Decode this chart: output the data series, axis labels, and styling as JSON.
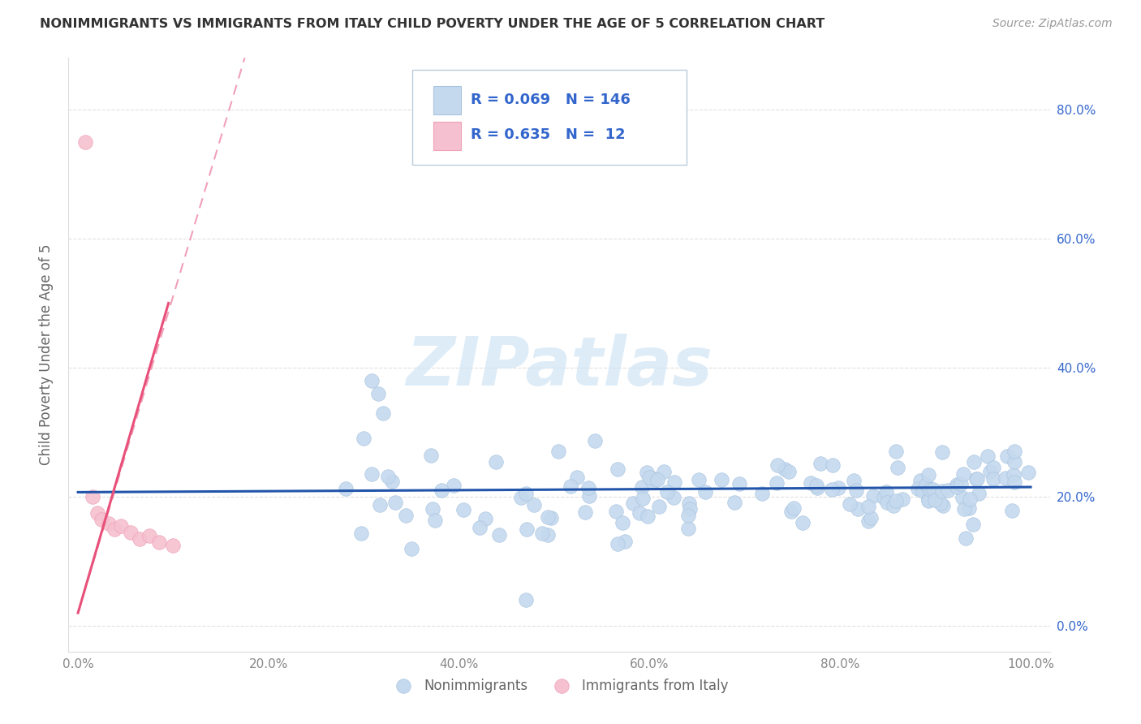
{
  "title": "NONIMMIGRANTS VS IMMIGRANTS FROM ITALY CHILD POVERTY UNDER THE AGE OF 5 CORRELATION CHART",
  "source": "Source: ZipAtlas.com",
  "ylabel": "Child Poverty Under the Age of 5",
  "xlim": [
    -0.01,
    1.02
  ],
  "ylim": [
    -0.04,
    0.88
  ],
  "xticks": [
    0.0,
    0.2,
    0.4,
    0.6,
    0.8,
    1.0
  ],
  "xticklabels": [
    "0.0%",
    "20.0%",
    "40.0%",
    "60.0%",
    "80.0%",
    "100.0%"
  ],
  "yticks": [
    0.0,
    0.2,
    0.4,
    0.6,
    0.8
  ],
  "yticklabels_right": [
    "0.0%",
    "20.0%",
    "40.0%",
    "60.0%",
    "80.0%"
  ],
  "blue_fill": "#C5D9EE",
  "blue_edge": "#A8C4E0",
  "pink_fill": "#F5C0CF",
  "pink_edge": "#EFA0B8",
  "blue_line_color": "#2255AA",
  "pink_line_color": "#E8507A",
  "pink_dash_color": "#F0A0B8",
  "R_blue": 0.069,
  "N_blue": 146,
  "R_pink": 0.635,
  "N_pink": 12,
  "legend_color": "#3366CC",
  "watermark_color": "#D0E4F5",
  "bg_color": "#FFFFFF",
  "grid_color": "#DDDDDD",
  "tick_color": "#888888",
  "title_color": "#333333",
  "source_color": "#999999",
  "label_color": "#666666"
}
